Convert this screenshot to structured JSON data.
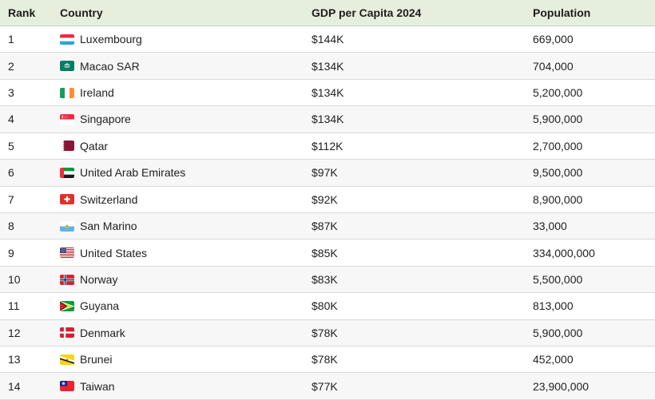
{
  "table": {
    "columns": [
      {
        "label": "Rank"
      },
      {
        "label": "Country"
      },
      {
        "label": "GDP per Capita 2024"
      },
      {
        "label": "Population"
      }
    ],
    "rows": [
      {
        "rank": "1",
        "country": "Luxembourg",
        "flag": "luxembourg",
        "gdp": "$144K",
        "population": "669,000"
      },
      {
        "rank": "2",
        "country": "Macao SAR",
        "flag": "macao",
        "gdp": "$134K",
        "population": "704,000"
      },
      {
        "rank": "3",
        "country": "Ireland",
        "flag": "ireland",
        "gdp": "$134K",
        "population": "5,200,000"
      },
      {
        "rank": "4",
        "country": "Singapore",
        "flag": "singapore",
        "gdp": "$134K",
        "population": "5,900,000"
      },
      {
        "rank": "5",
        "country": "Qatar",
        "flag": "qatar",
        "gdp": "$112K",
        "population": "2,700,000"
      },
      {
        "rank": "6",
        "country": "United Arab Emirates",
        "flag": "uae",
        "gdp": "$97K",
        "population": "9,500,000"
      },
      {
        "rank": "7",
        "country": "Switzerland",
        "flag": "switzerland",
        "gdp": "$92K",
        "population": "8,900,000"
      },
      {
        "rank": "8",
        "country": "San Marino",
        "flag": "san_marino",
        "gdp": "$87K",
        "population": "33,000"
      },
      {
        "rank": "9",
        "country": "United States",
        "flag": "united_states",
        "gdp": "$85K",
        "population": "334,000,000"
      },
      {
        "rank": "10",
        "country": "Norway",
        "flag": "norway",
        "gdp": "$83K",
        "population": "5,500,000"
      },
      {
        "rank": "11",
        "country": "Guyana",
        "flag": "guyana",
        "gdp": "$80K",
        "population": "813,000"
      },
      {
        "rank": "12",
        "country": "Denmark",
        "flag": "denmark",
        "gdp": "$78K",
        "population": "5,900,000"
      },
      {
        "rank": "13",
        "country": "Brunei",
        "flag": "brunei",
        "gdp": "$78K",
        "population": "452,000"
      },
      {
        "rank": "14",
        "country": "Taiwan",
        "flag": "taiwan",
        "gdp": "$77K",
        "population": "23,900,000"
      }
    ]
  },
  "colors": {
    "header_bg": "#e6efde",
    "row_stripe": "#f7f7f7",
    "border": "#dadada",
    "text": "#202124"
  }
}
